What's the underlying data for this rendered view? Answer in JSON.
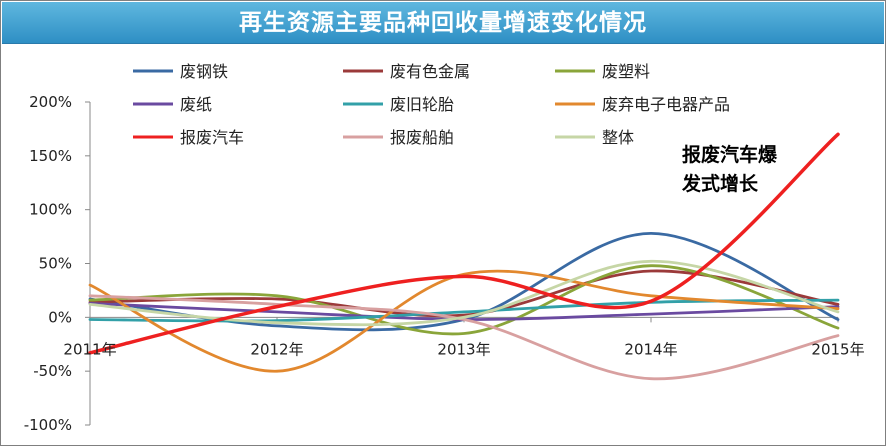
{
  "chart_data": {
    "type": "line",
    "title": "再生资源主要品种回收量增速变化情况",
    "categories": [
      "2011年",
      "2012年",
      "2013年",
      "2014年",
      "2015年"
    ],
    "y_ticks": [
      "200%",
      "150%",
      "100%",
      "50%",
      "0%",
      "-50%",
      "-100%"
    ],
    "ylim": [
      -100,
      200
    ],
    "unit": "%",
    "grid": false,
    "legend_position": "top",
    "series": [
      {
        "name": "废钢铁",
        "color": "#3a6aa3",
        "values": [
          17,
          -8,
          -2,
          78,
          -2
        ]
      },
      {
        "name": "废有色金属",
        "color": "#9b3a3a",
        "values": [
          14,
          17,
          2,
          43,
          12
        ]
      },
      {
        "name": "废塑料",
        "color": "#8aa53a",
        "values": [
          16,
          20,
          -15,
          48,
          -10
        ]
      },
      {
        "name": "废纸",
        "color": "#6a4aa0",
        "values": [
          13,
          5,
          -2,
          3,
          10
        ]
      },
      {
        "name": "废旧轮胎",
        "color": "#32a0a8",
        "values": [
          -2,
          -3,
          5,
          14,
          16
        ]
      },
      {
        "name": "废弃电子电器产品",
        "color": "#e2882e",
        "values": [
          30,
          -50,
          40,
          20,
          8
        ]
      },
      {
        "name": "报废汽车",
        "color": "#ee2020",
        "values": [
          -33,
          10,
          38,
          15,
          170
        ]
      },
      {
        "name": "报废船舶",
        "color": "#d8a0a0",
        "values": [
          20,
          12,
          -2,
          -57,
          -17
        ]
      },
      {
        "name": "整体",
        "color": "#c6d6a6",
        "values": [
          12,
          -5,
          0,
          52,
          5
        ]
      }
    ],
    "annotation": {
      "lines": [
        "报废汽车爆",
        "发式增长"
      ]
    }
  }
}
